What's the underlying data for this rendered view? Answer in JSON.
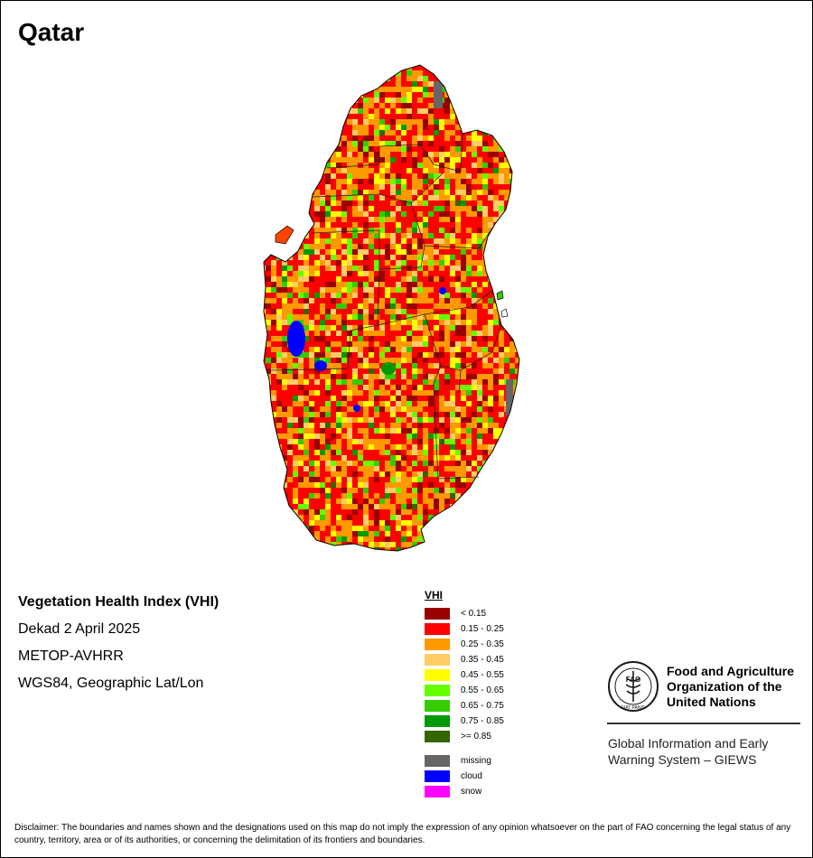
{
  "map": {
    "country": "Qatar",
    "title": "Vegetation Health Index (VHI)",
    "period": "Dekad 2 April 2025",
    "sensor": "METOP-AVHRR",
    "projection": "WGS84, Geographic Lat/Lon"
  },
  "legend": {
    "title": "VHI",
    "classes": [
      {
        "label": "< 0.15",
        "color": "#990000"
      },
      {
        "label": "0.15 - 0.25",
        "color": "#ff0000"
      },
      {
        "label": "0.25 - 0.35",
        "color": "#ff9900"
      },
      {
        "label": "0.35 - 0.45",
        "color": "#ffcc66"
      },
      {
        "label": "0.45 - 0.55",
        "color": "#ffff00"
      },
      {
        "label": "0.55 - 0.65",
        "color": "#66ff00"
      },
      {
        "label": "0.65 - 0.75",
        "color": "#33cc00"
      },
      {
        "label": "0.75 - 0.85",
        "color": "#009900"
      },
      {
        "label": ">= 0.85",
        "color": "#336600"
      }
    ],
    "special": [
      {
        "label": "missing",
        "color": "#666666"
      },
      {
        "label": "cloud",
        "color": "#0000ff"
      },
      {
        "label": "snow",
        "color": "#ff00ff"
      }
    ]
  },
  "organization": {
    "logo_text": "FAO",
    "logo_motto": "FIAT PANIS",
    "name": "Food and Agriculture Organization of the United Nations",
    "program": "Global Information and Early Warning System – GIEWS"
  },
  "disclaimer": "Disclaimer: The boundaries and names shown and the designations used on this map do not imply the expression of any opinion whatsoever on the part of FAO concerning the legal status of any country, territory, area or of its authorities, or concerning the delimitation of its frontiers and boundaries."
}
